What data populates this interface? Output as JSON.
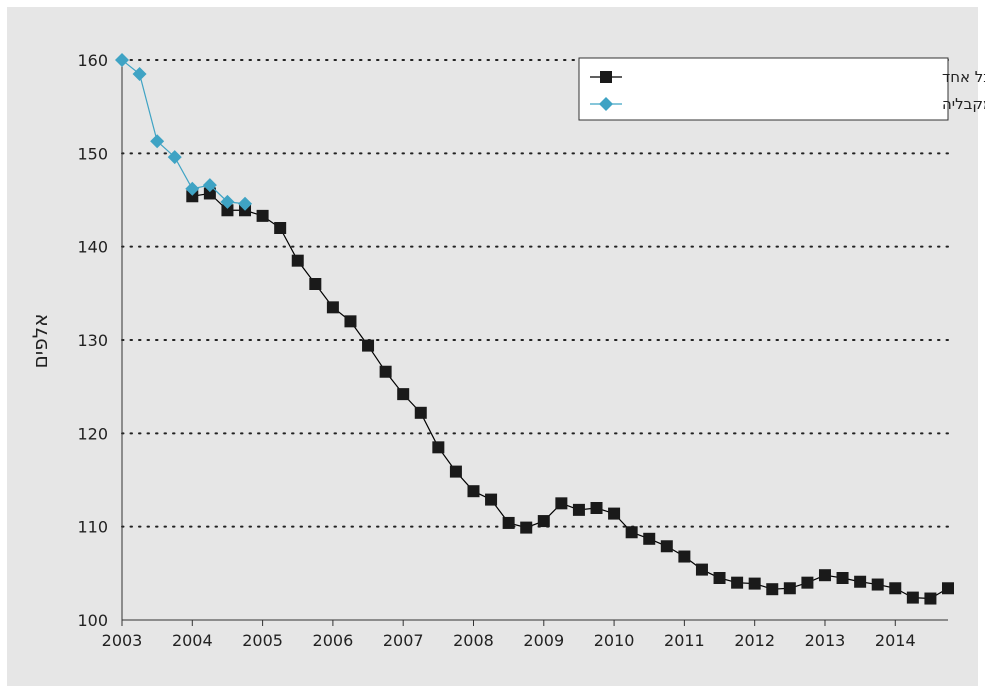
{
  "chart_data": {
    "type": "line",
    "ylabel": "אלפים",
    "xlabel": "",
    "ylim": [
      100,
      160
    ],
    "yticks": [
      100,
      110,
      120,
      130,
      140,
      150,
      160
    ],
    "xlim": [
      2003,
      2014.75
    ],
    "xticks": [
      2003,
      2004,
      2005,
      2006,
      2007,
      2008,
      2009,
      2010,
      2011,
      2012,
      2013,
      2014
    ],
    "grid": "horizontal-dotted",
    "legend_position": "top-right",
    "series": [
      {
        "name": "קצבה מפוצלת שיוחסה למקבל אחד",
        "color": "#000000",
        "marker": "square",
        "marker_color": "#1a1a1a",
        "x": [
          2004.0,
          2004.25,
          2004.5,
          2004.75,
          2005.0,
          2005.25,
          2005.5,
          2005.75,
          2006.0,
          2006.25,
          2006.5,
          2006.75,
          2007.0,
          2007.25,
          2007.5,
          2007.75,
          2008.0,
          2008.25,
          2008.5,
          2008.75,
          2009.0,
          2009.25,
          2009.5,
          2009.75,
          2010.0,
          2010.25,
          2010.5,
          2010.75,
          2011.0,
          2011.25,
          2011.5,
          2011.75,
          2012.0,
          2012.25,
          2012.5,
          2012.75,
          2013.0,
          2013.25,
          2013.5,
          2013.75,
          2014.0,
          2014.25,
          2014.5,
          2014.75
        ],
        "values": [
          145.4,
          145.7,
          143.9,
          143.9,
          143.3,
          142.0,
          138.5,
          136.0,
          133.5,
          132.0,
          129.4,
          126.6,
          124.2,
          122.2,
          118.5,
          115.9,
          113.8,
          112.9,
          110.4,
          109.9,
          110.6,
          112.5,
          111.8,
          112.0,
          111.4,
          109.4,
          108.7,
          107.9,
          106.8,
          105.4,
          104.5,
          104.0,
          103.9,
          103.3,
          103.4,
          104.0,
          104.8,
          104.5,
          104.1,
          103.8,
          103.4,
          102.4,
          102.3,
          103.4
        ]
      },
      {
        "name": "קצבה מפוצלת שיוחסה לכל מקבליה",
        "color": "#3fa3c4",
        "marker": "diamond",
        "marker_color": "#3fa3c4",
        "x": [
          2003.0,
          2003.25,
          2003.5,
          2003.75,
          2004.0,
          2004.25,
          2004.5,
          2004.75
        ],
        "values": [
          160.0,
          158.5,
          151.3,
          149.6,
          146.2,
          146.6,
          144.8,
          144.6
        ]
      }
    ]
  }
}
